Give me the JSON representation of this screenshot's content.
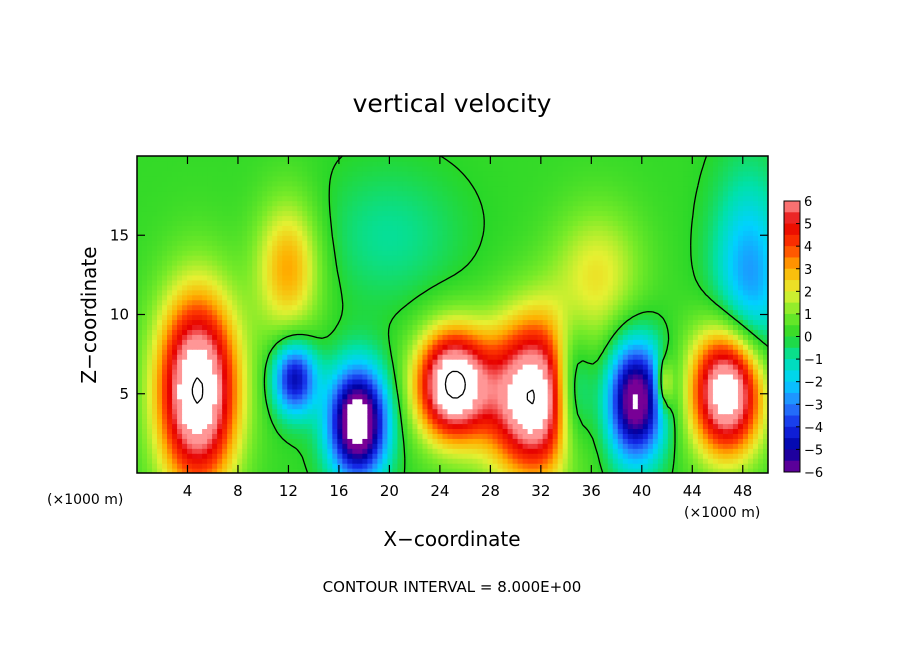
{
  "chart_data": {
    "type": "heatmap",
    "title": "vertical velocity",
    "xlabel": "X−coordinate",
    "ylabel": "Z−coordinate",
    "x_unit": "(×1000 m)",
    "y_unit": "(×1000 m)",
    "xlim": [
      0,
      50
    ],
    "ylim": [
      0,
      20
    ],
    "x_ticks": [
      4,
      8,
      12,
      16,
      20,
      24,
      28,
      32,
      36,
      40,
      44,
      48
    ],
    "x_tick_labels": [
      "4",
      "8",
      "12",
      "16",
      "20",
      "24",
      "28",
      "32",
      "36",
      "40",
      "44",
      "48"
    ],
    "y_ticks": [
      5,
      10,
      15
    ],
    "y_tick_labels": [
      "5",
      "10",
      "15"
    ],
    "colorbar": {
      "min": -6,
      "max": 6,
      "tick_values": [
        6,
        5,
        4,
        3,
        2,
        1,
        0,
        -1,
        -2,
        -3,
        -4,
        -5,
        -6
      ],
      "tick_labels": [
        "6",
        "5",
        "4",
        "3",
        "2",
        "1",
        "0",
        "−1",
        "−2",
        "−3",
        "−4",
        "−5",
        "−6"
      ]
    },
    "contour_interval_text": "CONTOUR INTERVAL = 8.000E+00",
    "features": [
      {
        "x": 4.8,
        "z": 5.2,
        "value": 8,
        "sx": 2.2,
        "sz": 4.2
      },
      {
        "x": 12.0,
        "z": 13.0,
        "value": 3,
        "sx": 1.8,
        "sz": 3.0
      },
      {
        "x": 12.5,
        "z": 6.0,
        "value": -5,
        "sx": 1.2,
        "sz": 1.6
      },
      {
        "x": 17.5,
        "z": 3.2,
        "value": -8,
        "sx": 1.6,
        "sz": 2.4
      },
      {
        "x": 25.0,
        "z": 5.6,
        "value": 8,
        "sx": 2.0,
        "sz": 2.4
      },
      {
        "x": 31.5,
        "z": 4.8,
        "value": 8,
        "sx": 2.6,
        "sz": 3.4
      },
      {
        "x": 34.5,
        "z": 5.2,
        "value": -4,
        "sx": 1.2,
        "sz": 2.8
      },
      {
        "x": 39.5,
        "z": 4.6,
        "value": -7,
        "sx": 1.6,
        "sz": 2.6
      },
      {
        "x": 41.8,
        "z": 5.6,
        "value": 3,
        "sx": 0.5,
        "sz": 1.2
      },
      {
        "x": 46.8,
        "z": 5.2,
        "value": 8,
        "sx": 2.0,
        "sz": 2.8
      },
      {
        "x": 48.5,
        "z": 12.0,
        "value": -3,
        "sx": 2.0,
        "sz": 4.5
      },
      {
        "x": 36.5,
        "z": 12.5,
        "value": 2,
        "sx": 2.5,
        "sz": 3.0
      },
      {
        "x": 20.0,
        "z": 15.0,
        "value": -1,
        "sx": 4.0,
        "sz": 3.0
      }
    ]
  }
}
